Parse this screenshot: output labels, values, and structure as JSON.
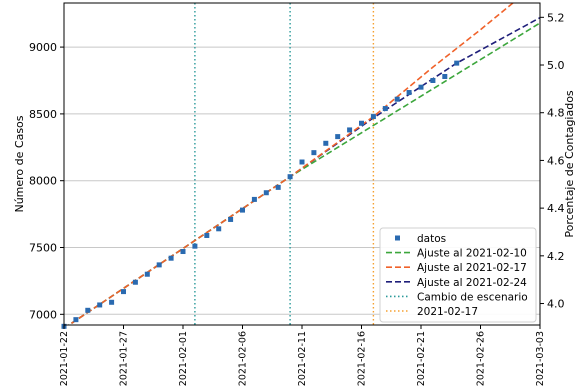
{
  "chart_data": {
    "type": "line",
    "title": "",
    "xlabel": "",
    "ylabel": "Número de Casos",
    "y2label": "Porcentaje de Contagiados",
    "x_is_date": true,
    "xlim": [
      "2021-01-22",
      "2021-03-03"
    ],
    "ylim": [
      6920,
      9330
    ],
    "y2lim": [
      3.91,
      5.26
    ],
    "x_ticks": [
      "2021-01-22",
      "2021-01-27",
      "2021-02-01",
      "2021-02-06",
      "2021-02-11",
      "2021-02-16",
      "2021-02-21",
      "2021-02-26",
      "2021-03-03"
    ],
    "y_ticks": [
      7000,
      7500,
      8000,
      8500,
      9000
    ],
    "y2_ticks": [
      "4.0",
      "4.2",
      "4.4",
      "4.6",
      "4.8",
      "5.0",
      "5.2"
    ],
    "grid": "horizontal",
    "legend_position": "lower right",
    "colors": {
      "datos": "#2a6ab0",
      "fit_0210": "#3ca63c",
      "fit_0217": "#f0622a",
      "fit_0224": "#1f1f7a",
      "escenario": "#2a9a9a",
      "marker_0217": "#f5a030"
    },
    "series": [
      {
        "name": "datos",
        "style": "markers",
        "x": [
          "2021-01-22",
          "2021-01-23",
          "2021-01-24",
          "2021-01-25",
          "2021-01-26",
          "2021-01-27",
          "2021-01-28",
          "2021-01-29",
          "2021-01-30",
          "2021-01-31",
          "2021-02-01",
          "2021-02-02",
          "2021-02-03",
          "2021-02-04",
          "2021-02-05",
          "2021-02-06",
          "2021-02-07",
          "2021-02-08",
          "2021-02-09",
          "2021-02-10",
          "2021-02-11",
          "2021-02-12",
          "2021-02-13",
          "2021-02-14",
          "2021-02-15",
          "2021-02-16",
          "2021-02-17",
          "2021-02-18",
          "2021-02-19",
          "2021-02-20",
          "2021-02-21",
          "2021-02-22",
          "2021-02-23",
          "2021-02-24"
        ],
        "values": [
          6910,
          6960,
          7030,
          7070,
          7090,
          7170,
          7240,
          7300,
          7370,
          7420,
          7470,
          7510,
          7590,
          7640,
          7710,
          7780,
          7860,
          7910,
          7950,
          8030,
          8140,
          8210,
          8280,
          8330,
          8380,
          8430,
          8480,
          8540,
          8610,
          8660,
          8700,
          8750,
          8780,
          8880
        ]
      },
      {
        "name": "Ajuste al 2021-02-10",
        "style": "dashed",
        "x": [
          "2021-01-22",
          "2021-02-10",
          "2021-03-03"
        ],
        "values": [
          6895,
          8030,
          9180
        ]
      },
      {
        "name": "Ajuste al 2021-02-17",
        "style": "dashed",
        "x": [
          "2021-01-22",
          "2021-02-10",
          "2021-02-17",
          "2021-02-22",
          "2021-02-26",
          "2021-03-01"
        ],
        "values": [
          6895,
          8030,
          8480,
          8850,
          9130,
          9350
        ]
      },
      {
        "name": "Ajuste al 2021-02-24",
        "style": "dashed",
        "x": [
          "2021-01-22",
          "2021-02-10",
          "2021-02-17",
          "2021-02-24",
          "2021-03-03"
        ],
        "values": [
          6895,
          8030,
          8470,
          8880,
          9220
        ]
      }
    ],
    "vlines": [
      {
        "name": "Cambio de escenario",
        "style": "dotted",
        "x": [
          "2021-02-02",
          "2021-02-10"
        ]
      },
      {
        "name": "2021-02-17",
        "style": "dotted",
        "x": [
          "2021-02-17"
        ]
      }
    ],
    "legend": [
      "datos",
      "Ajuste al 2021-02-10",
      "Ajuste al 2021-02-17",
      "Ajuste al 2021-02-24",
      "Cambio de escenario",
      "2021-02-17"
    ]
  }
}
